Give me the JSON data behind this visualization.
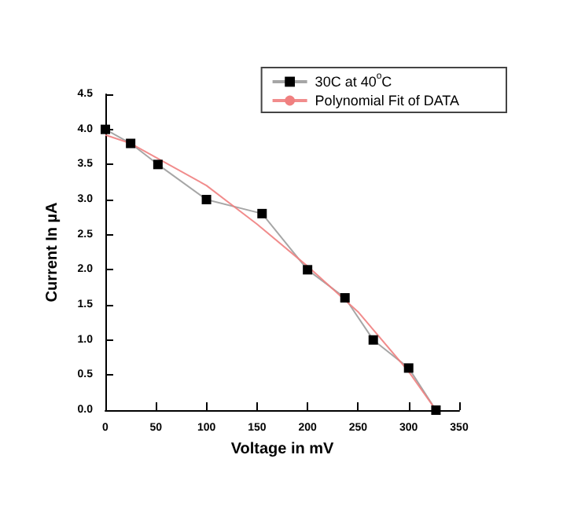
{
  "chart_data": {
    "type": "line",
    "xlabel": "Voltage in mV",
    "ylabel": "Current In µA",
    "xlim": [
      0,
      350
    ],
    "xticks": [
      0,
      50,
      100,
      150,
      200,
      250,
      300,
      350
    ],
    "ylim": [
      0,
      4.5
    ],
    "yticks": [
      {
        "value": 0,
        "label": "0.0"
      },
      {
        "value": 0.5,
        "label": "0.5"
      },
      {
        "value": 1,
        "label": "1.0"
      },
      {
        "value": 1.5,
        "label": "1.5"
      },
      {
        "value": 2,
        "label": "2.0"
      },
      {
        "value": 2.5,
        "label": "2.5"
      },
      {
        "value": 3,
        "label": "3.0"
      },
      {
        "value": 3.5,
        "label": "3.5"
      },
      {
        "value": 4,
        "label": "4.0"
      },
      {
        "value": 4.5,
        "label": "4.5"
      }
    ],
    "grid": false,
    "legend": "top right",
    "series": [
      {
        "name": "30C at 40$^{o}$C",
        "color": "#000000",
        "marker": "square",
        "x": [
          0,
          25,
          52,
          100,
          155,
          200,
          237,
          265,
          300,
          327
        ],
        "values": [
          4.0,
          3.8,
          3.5,
          3.0,
          2.8,
          2.0,
          1.6,
          1.0,
          0.6,
          0.0
        ]
      },
      {
        "name": "Polynomial Fit of DATA",
        "color": "#f08080",
        "marker": "none",
        "x": [
          0,
          25,
          50,
          100,
          150,
          200,
          250,
          300,
          327
        ],
        "values": [
          3.92,
          3.8,
          3.6,
          3.2,
          2.65,
          2.05,
          1.4,
          0.55,
          0.0
        ]
      }
    ]
  }
}
